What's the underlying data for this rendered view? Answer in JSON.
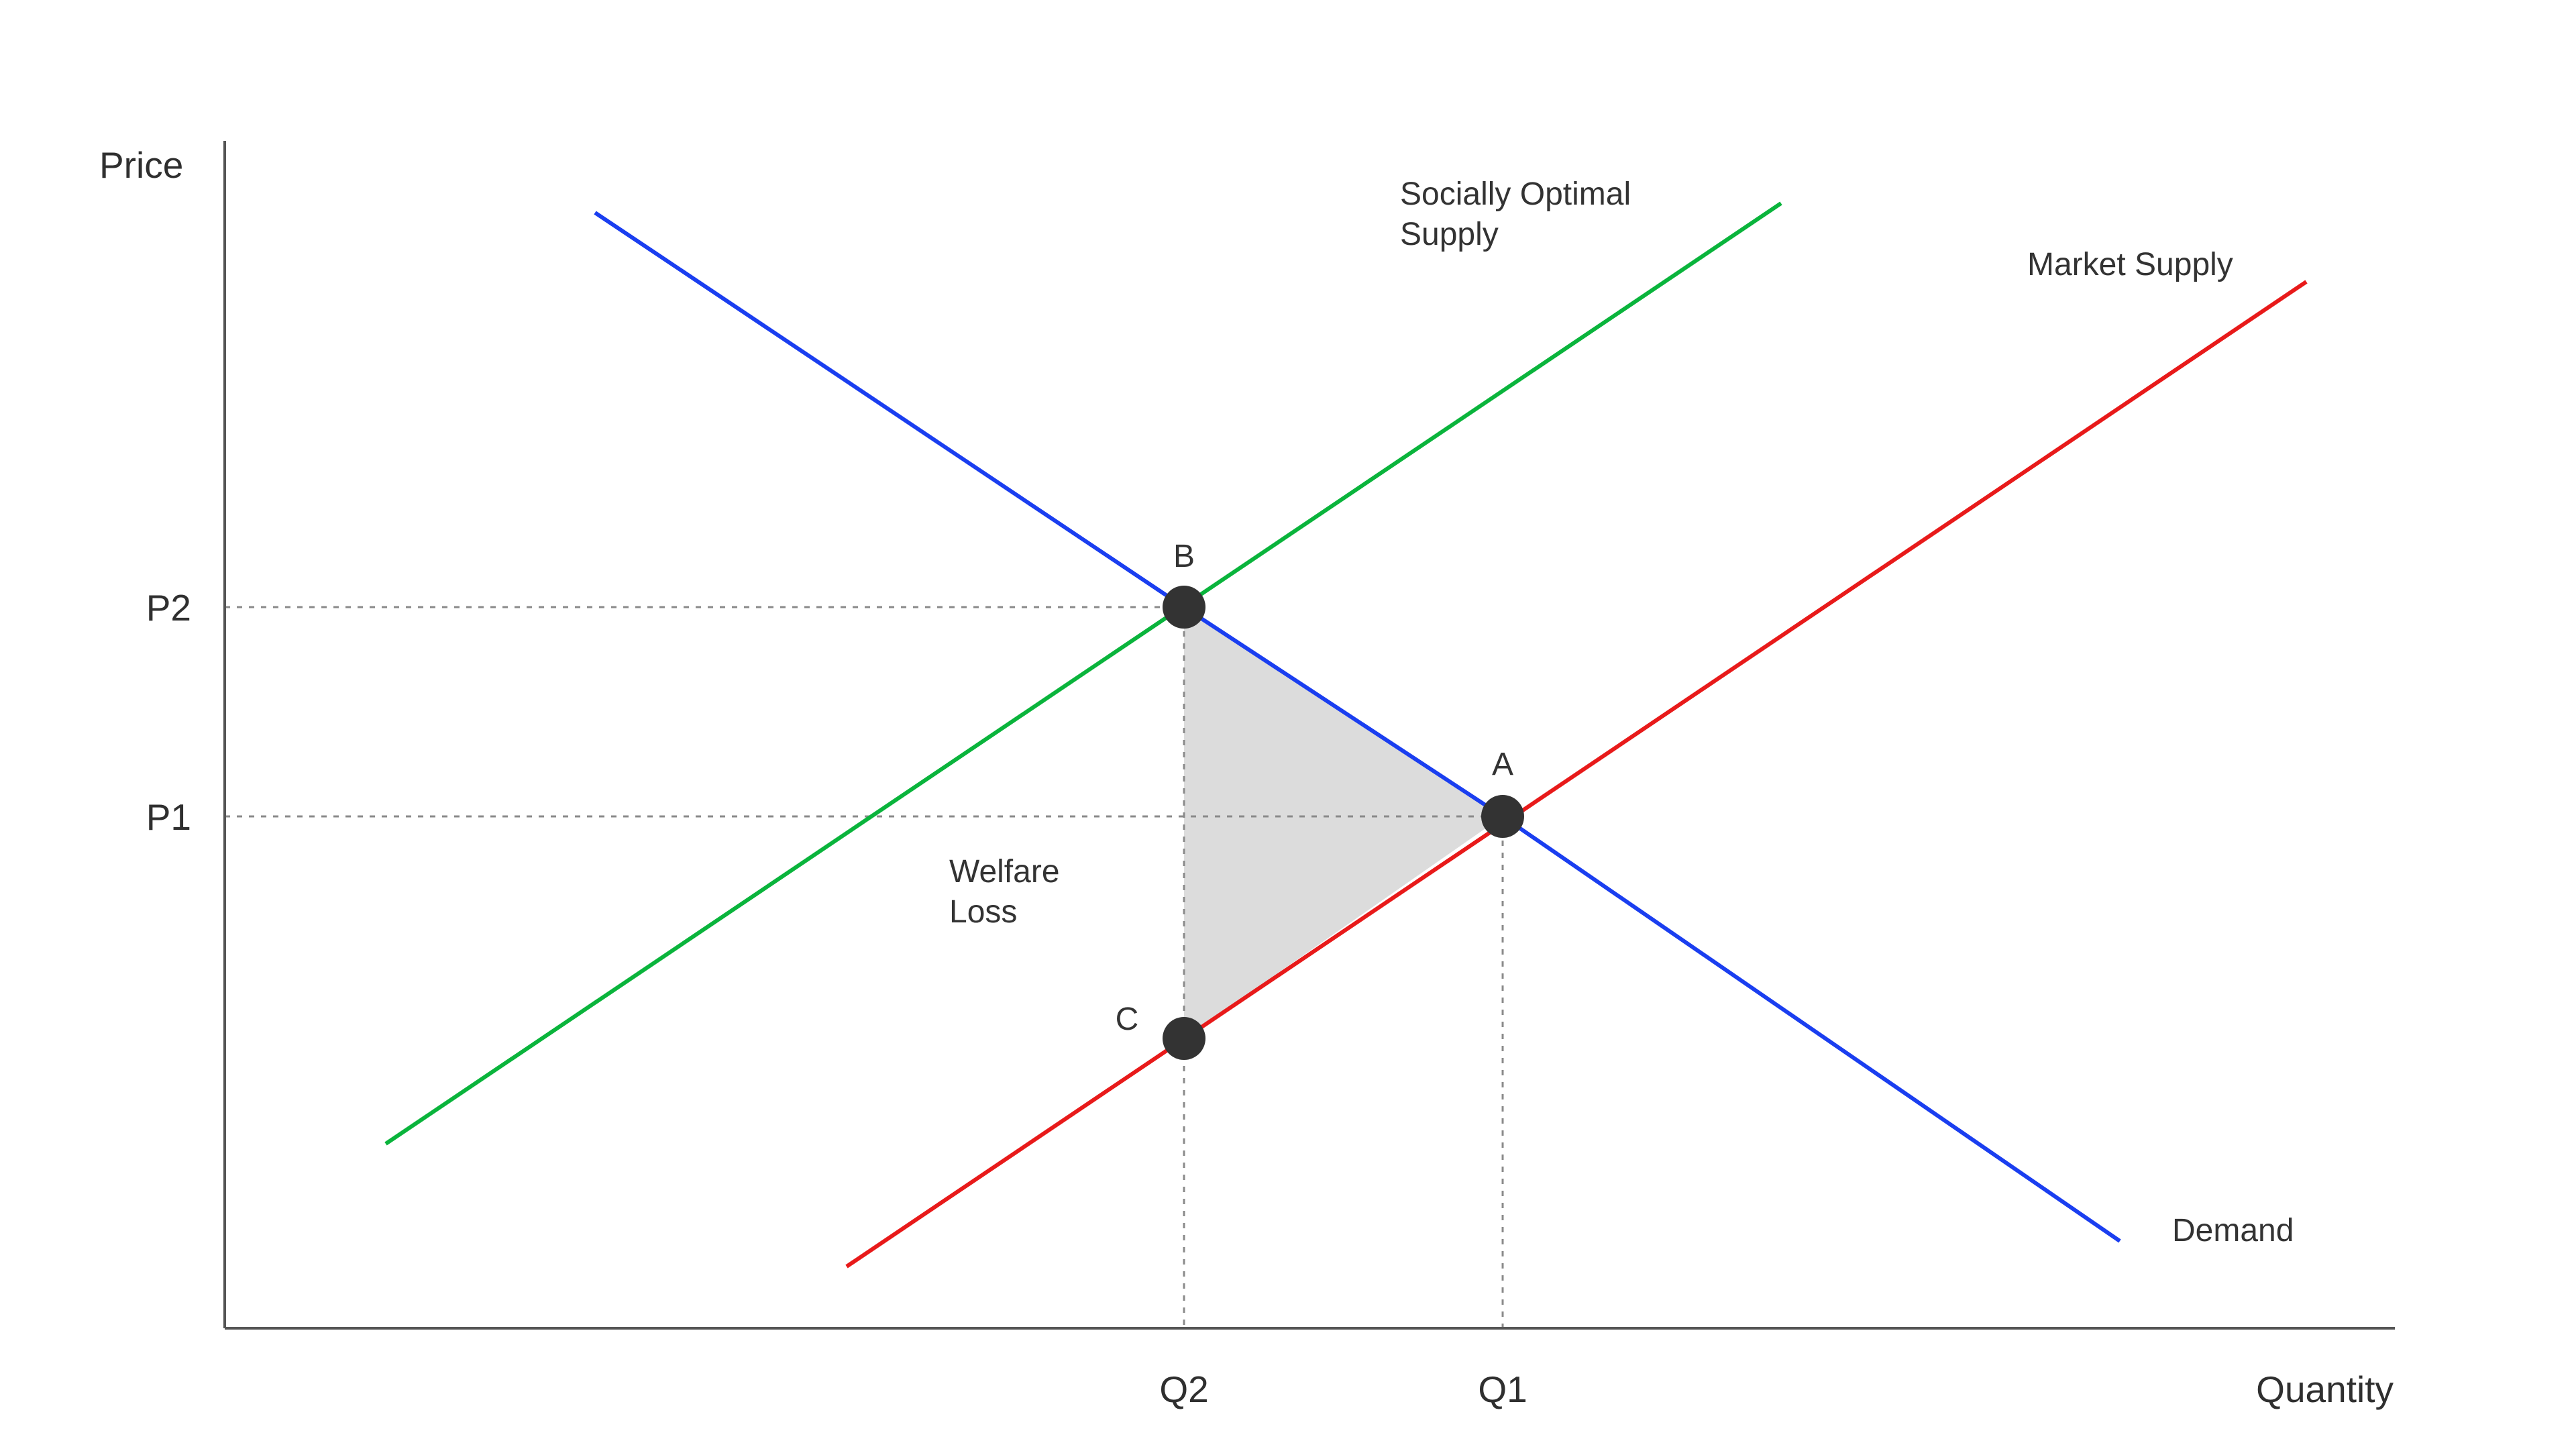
{
  "axes": {
    "y_title": "Price",
    "x_title": "Quantity",
    "y_ticks": [
      "P2",
      "P1"
    ],
    "x_ticks": [
      "Q2",
      "Q1"
    ]
  },
  "curves": {
    "socially_optimal_supply": {
      "label_line1": "Socially Optimal",
      "label_line2": "Supply",
      "color": "#0ab43c"
    },
    "market_supply": {
      "label": "Market Supply",
      "color": "#e81a1a"
    },
    "demand": {
      "label": "Demand",
      "color": "#1a3ef0"
    }
  },
  "points": [
    "B",
    "A",
    "C"
  ],
  "welfare_loss": {
    "line1": "Welfare",
    "line2": "Loss",
    "fill": "#dcdcdc"
  }
}
